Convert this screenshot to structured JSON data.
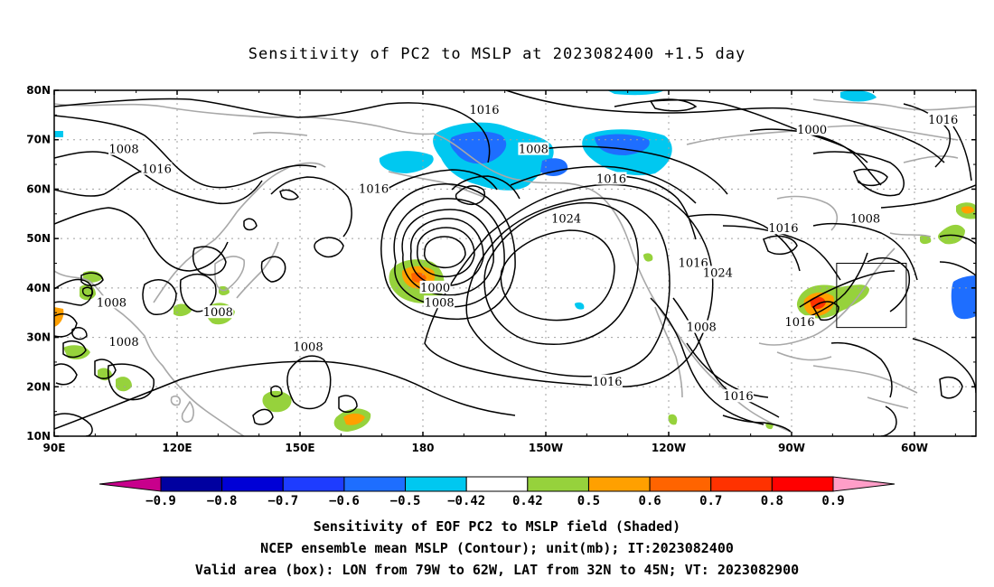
{
  "title": "Sensitivity of PC2 to MSLP at 2023082400 +1.5 day",
  "map": {
    "lat_ticks": [
      "80N",
      "70N",
      "60N",
      "50N",
      "40N",
      "30N",
      "20N",
      "10N"
    ],
    "lon_ticks": [
      "90E",
      "120E",
      "150E",
      "180",
      "150W",
      "120W",
      "90W",
      "60W"
    ],
    "contour_labels": [
      {
        "text": "1016",
        "lon": 195,
        "lat": 76
      },
      {
        "text": "1008",
        "lon": 107,
        "lat": 68
      },
      {
        "text": "1016",
        "lon": 115,
        "lat": 64
      },
      {
        "text": "1008",
        "lon": 207,
        "lat": 68
      },
      {
        "text": "1016",
        "lon": 168,
        "lat": 60
      },
      {
        "text": "1000",
        "lon": 275,
        "lat": 72
      },
      {
        "text": "1016",
        "lon": 307,
        "lat": 74
      },
      {
        "text": "1016",
        "lon": 226,
        "lat": 62
      },
      {
        "text": "1024",
        "lon": 215,
        "lat": 54
      },
      {
        "text": "1008",
        "lon": 288,
        "lat": 54
      },
      {
        "text": "1016",
        "lon": 268,
        "lat": 52
      },
      {
        "text": "1016",
        "lon": 246,
        "lat": 45
      },
      {
        "text": "1024",
        "lon": 252,
        "lat": 43
      },
      {
        "text": "1000",
        "lon": 183,
        "lat": 40
      },
      {
        "text": "1008",
        "lon": 184,
        "lat": 37
      },
      {
        "text": "1008",
        "lon": 104,
        "lat": 37
      },
      {
        "text": "1008",
        "lon": 130,
        "lat": 35
      },
      {
        "text": "1008",
        "lon": 107,
        "lat": 29
      },
      {
        "text": "1008",
        "lon": 152,
        "lat": 28
      },
      {
        "text": "1008",
        "lon": 248,
        "lat": 32
      },
      {
        "text": "1016",
        "lon": 272,
        "lat": 33
      },
      {
        "text": "1016",
        "lon": 225,
        "lat": 21
      },
      {
        "text": "1016",
        "lon": 257,
        "lat": 18
      }
    ],
    "valid_box": {
      "lon_min": -79,
      "lon_max": -62,
      "lat_min": 32,
      "lat_max": 45
    },
    "colors": {
      "contour": "#000000",
      "coast": "#a8a8a8",
      "grid": "#a0a0a0"
    }
  },
  "colorbar": {
    "labels": [
      "-0.9",
      "-0.8",
      "-0.7",
      "-0.6",
      "-0.5",
      "-0.42",
      "0.42",
      "0.5",
      "0.6",
      "0.7",
      "0.8",
      "0.9"
    ],
    "colors": [
      "#c8008c",
      "#0000a0",
      "#0000d6",
      "#1e3cff",
      "#1e6eff",
      "#00c8f0",
      "#ffffff",
      "#96d23c",
      "#ffa000",
      "#ff6400",
      "#ff3200",
      "#ff0000",
      "#ff9ec8"
    ]
  },
  "captions": {
    "line1": "Sensitivity of EOF PC2 to MSLP field (Shaded)",
    "line2": "NCEP ensemble mean MSLP (Contour); unit(mb); IT:2023082400",
    "line3": "Valid area (box): LON from 79W to 62W, LAT from 32N to 45N; VT: 2023082900"
  }
}
